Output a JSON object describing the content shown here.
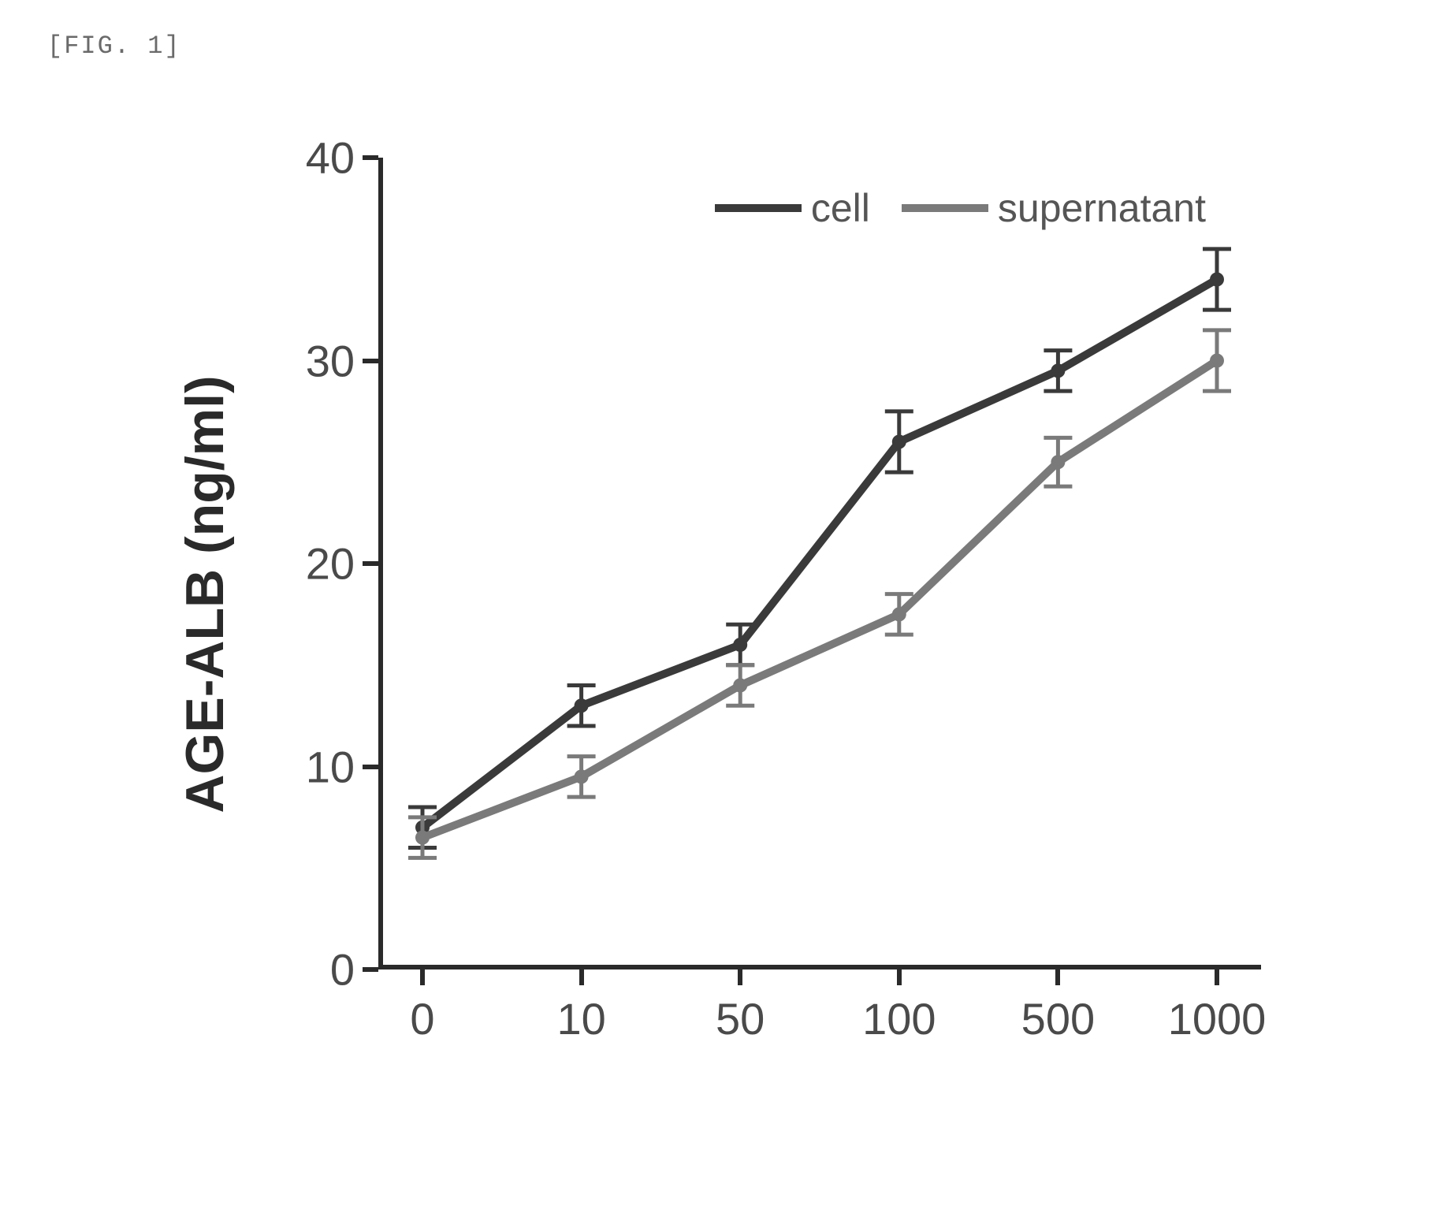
{
  "figure_label": "[FIG. 1]",
  "chart": {
    "type": "line",
    "y_axis_label": "AGE-ALB (ng/ml)",
    "ylim": [
      0,
      40
    ],
    "ytick_values": [
      0,
      10,
      20,
      30,
      40
    ],
    "ytick_labels": [
      "0",
      "10",
      "20",
      "30",
      "40"
    ],
    "x_categories": [
      "0",
      "10",
      "50",
      "100",
      "500",
      "1000"
    ],
    "axis_line_color": "#2a2a2a",
    "axis_line_width": 6,
    "tick_length": 20,
    "background_color": "#ffffff",
    "y_axis_label_fontsize": 68,
    "tick_label_fontsize": 56,
    "tick_label_color": "#4a4a4a",
    "legend_fontsize": 50,
    "legend": {
      "position": "top-right",
      "items": [
        {
          "label": "cell",
          "color": "#3a3a3a"
        },
        {
          "label": "supernatant",
          "color": "#7a7a7a"
        }
      ]
    },
    "series": [
      {
        "name": "cell",
        "color": "#3a3a3a",
        "line_width": 10,
        "values": [
          7.0,
          13.0,
          16.0,
          26.0,
          29.5,
          34.0
        ],
        "errors": [
          1.0,
          1.0,
          1.0,
          1.5,
          1.0,
          1.5
        ],
        "marker_size": 9,
        "error_cap_width": 18
      },
      {
        "name": "supernatant",
        "color": "#7a7a7a",
        "line_width": 10,
        "values": [
          6.5,
          9.5,
          14.0,
          17.5,
          25.0,
          30.0
        ],
        "errors": [
          1.0,
          1.0,
          1.0,
          1.0,
          1.2,
          1.5
        ],
        "marker_size": 9,
        "error_cap_width": 18
      }
    ],
    "plot_padding_x": 0.05
  }
}
